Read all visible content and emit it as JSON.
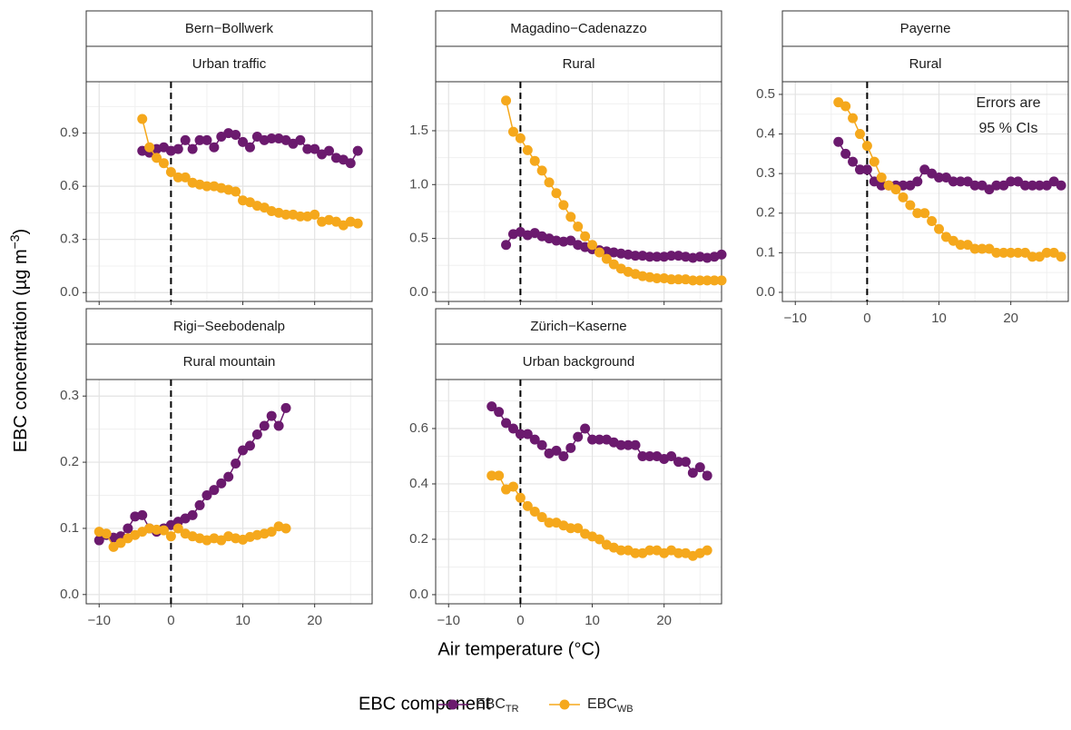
{
  "x_label": "Air temperature (°C)",
  "y_label": "EBC concentration (µg m",
  "y_label_sup": "−3",
  "y_label_end": ")",
  "legend": {
    "title": "EBC component",
    "position": "bottom",
    "series": [
      {
        "name": "EBC",
        "subscript": "TR",
        "color": "#6b1a6e"
      },
      {
        "name": "EBC",
        "subscript": "WB",
        "color": "#f5a81c"
      }
    ]
  },
  "chart_data": [
    {
      "type": "line",
      "site": "Bern−Bollwerk",
      "setting": "Urban traffic",
      "show_xtick_labels": false,
      "vline": 0,
      "x": [
        -4,
        -3,
        -2,
        -1,
        0,
        1,
        2,
        3,
        4,
        5,
        6,
        7,
        8,
        9,
        10,
        11,
        12,
        13,
        14,
        15,
        16,
        17,
        18,
        19,
        20,
        21,
        22,
        23,
        24,
        25,
        26
      ],
      "series": [
        {
          "values": [
            0.8,
            0.79,
            0.81,
            0.82,
            0.8,
            0.81,
            0.86,
            0.81,
            0.86,
            0.86,
            0.82,
            0.88,
            0.9,
            0.89,
            0.85,
            0.82,
            0.88,
            0.86,
            0.87,
            0.87,
            0.86,
            0.84,
            0.86,
            0.81,
            0.81,
            0.78,
            0.8,
            0.76,
            0.75,
            0.73,
            0.8
          ]
        },
        {
          "values": [
            0.98,
            0.82,
            0.76,
            0.73,
            0.68,
            0.65,
            0.65,
            0.62,
            0.61,
            0.6,
            0.6,
            0.59,
            0.58,
            0.57,
            0.52,
            0.51,
            0.49,
            0.48,
            0.46,
            0.45,
            0.44,
            0.44,
            0.43,
            0.43,
            0.44,
            0.4,
            0.41,
            0.4,
            0.38,
            0.4,
            0.39
          ]
        }
      ],
      "xlim": [
        -11.8,
        28
      ],
      "xticks": [
        {
          "value": -10,
          "label": "−10"
        },
        0,
        10,
        20
      ],
      "ylim": [
        -0.05,
        1.19
      ],
      "yticks": [
        {
          "value": 0,
          "label": "0.0"
        },
        0.3,
        0.6,
        0.9
      ],
      "grid": true
    },
    {
      "type": "line",
      "site": "Magadino−Cadenazzo",
      "setting": "Rural",
      "show_xtick_labels": false,
      "vline": 0,
      "x": [
        -2,
        -1,
        0,
        1,
        2,
        3,
        4,
        5,
        6,
        7,
        8,
        9,
        10,
        11,
        12,
        13,
        14,
        15,
        16,
        17,
        18,
        19,
        20,
        21,
        22,
        23,
        24,
        25,
        26,
        27,
        28
      ],
      "series": [
        {
          "values": [
            0.44,
            0.54,
            0.56,
            0.53,
            0.55,
            0.52,
            0.5,
            0.48,
            0.47,
            0.48,
            0.44,
            0.42,
            0.4,
            0.39,
            0.38,
            0.37,
            0.36,
            0.35,
            0.34,
            0.34,
            0.33,
            0.33,
            0.33,
            0.34,
            0.34,
            0.33,
            0.32,
            0.33,
            0.32,
            0.33,
            0.35
          ]
        },
        {
          "values": [
            1.78,
            1.49,
            1.43,
            1.32,
            1.22,
            1.13,
            1.02,
            0.92,
            0.81,
            0.7,
            0.61,
            0.52,
            0.44,
            0.37,
            0.31,
            0.26,
            0.22,
            0.19,
            0.17,
            0.15,
            0.14,
            0.13,
            0.13,
            0.12,
            0.12,
            0.12,
            0.11,
            0.11,
            0.11,
            0.11,
            0.11
          ]
        }
      ],
      "xlim": [
        -11.8,
        28
      ],
      "xticks": [
        {
          "value": -10,
          "label": "−10"
        },
        0,
        10,
        20
      ],
      "ylim": [
        -0.085,
        1.955
      ],
      "yticks": [
        {
          "value": 0,
          "label": "0.0"
        },
        0.5,
        {
          "value": 1,
          "label": "1.0"
        },
        1.5
      ],
      "grid": true
    },
    {
      "type": "line",
      "site": "Payerne",
      "setting": "Rural",
      "show_xtick_labels": true,
      "vline": 0,
      "annotation": [
        "Errors are",
        "95 % CIs"
      ],
      "x": [
        -4,
        -3,
        -2,
        -1,
        0,
        1,
        2,
        3,
        4,
        5,
        6,
        7,
        8,
        9,
        10,
        11,
        12,
        13,
        14,
        15,
        16,
        17,
        18,
        19,
        20,
        21,
        22,
        23,
        24,
        25,
        26,
        27
      ],
      "series": [
        {
          "values": [
            0.38,
            0.35,
            0.33,
            0.31,
            0.31,
            0.28,
            0.27,
            0.27,
            0.27,
            0.27,
            0.27,
            0.28,
            0.31,
            0.3,
            0.29,
            0.29,
            0.28,
            0.28,
            0.28,
            0.27,
            0.27,
            0.26,
            0.27,
            0.27,
            0.28,
            0.28,
            0.27,
            0.27,
            0.27,
            0.27,
            0.28,
            0.27
          ]
        },
        {
          "values": [
            0.48,
            0.47,
            0.44,
            0.4,
            0.37,
            0.33,
            0.29,
            0.27,
            0.26,
            0.24,
            0.22,
            0.2,
            0.2,
            0.18,
            0.16,
            0.14,
            0.13,
            0.12,
            0.12,
            0.11,
            0.11,
            0.11,
            0.1,
            0.1,
            0.1,
            0.1,
            0.1,
            0.09,
            0.09,
            0.1,
            0.1,
            0.09
          ]
        }
      ],
      "xlim": [
        -11.8,
        28
      ],
      "xticks": [
        {
          "value": -10,
          "label": "−10"
        },
        0,
        10,
        20
      ],
      "ylim": [
        -0.023,
        0.532
      ],
      "yticks": [
        {
          "value": 0,
          "label": "0.0"
        },
        0.1,
        0.2,
        0.3,
        0.4,
        0.5
      ],
      "grid": true
    },
    {
      "type": "line",
      "site": "Rigi−Seebodenalp",
      "setting": "Rural mountain",
      "show_xtick_labels": true,
      "vline": 0,
      "x": [
        -10,
        -9,
        -8,
        -7,
        -6,
        -5,
        -4,
        -3,
        -2,
        -1,
        0,
        1,
        2,
        3,
        4,
        5,
        6,
        7,
        8,
        9,
        10,
        11,
        12,
        13,
        14,
        15,
        16
      ],
      "series": [
        {
          "values": [
            0.082,
            0.09,
            0.086,
            0.088,
            0.1,
            0.118,
            0.12,
            0.1,
            0.095,
            0.1,
            0.105,
            0.11,
            0.115,
            0.12,
            0.135,
            0.15,
            0.158,
            0.168,
            0.178,
            0.198,
            0.218,
            0.225,
            0.242,
            0.255,
            0.27,
            0.255,
            0.282
          ]
        },
        {
          "values": [
            0.095,
            0.092,
            0.072,
            0.078,
            0.085,
            0.09,
            0.095,
            0.1,
            0.098,
            0.097,
            0.088,
            0.1,
            0.092,
            0.088,
            0.085,
            0.082,
            0.085,
            0.082,
            0.088,
            0.085,
            0.083,
            0.087,
            0.09,
            0.092,
            0.095,
            0.103,
            0.1
          ]
        }
      ],
      "xlim": [
        -11.8,
        28
      ],
      "xticks": [
        {
          "value": -10,
          "label": "−10"
        },
        0,
        10,
        20
      ],
      "ylim": [
        -0.014,
        0.325
      ],
      "yticks": [
        {
          "value": 0,
          "label": "0.0"
        },
        0.1,
        0.2,
        0.3
      ],
      "grid": true
    },
    {
      "type": "line",
      "site": "Zürich−Kaserne",
      "setting": "Urban background",
      "show_xtick_labels": true,
      "vline": 0,
      "x": [
        -4,
        -3,
        -2,
        -1,
        0,
        1,
        2,
        3,
        4,
        5,
        6,
        7,
        8,
        9,
        10,
        11,
        12,
        13,
        14,
        15,
        16,
        17,
        18,
        19,
        20,
        21,
        22,
        23,
        24,
        25,
        26
      ],
      "series": [
        {
          "values": [
            0.68,
            0.66,
            0.62,
            0.6,
            0.58,
            0.58,
            0.56,
            0.54,
            0.51,
            0.52,
            0.5,
            0.53,
            0.57,
            0.6,
            0.56,
            0.56,
            0.56,
            0.55,
            0.54,
            0.54,
            0.54,
            0.5,
            0.5,
            0.5,
            0.49,
            0.5,
            0.48,
            0.48,
            0.44,
            0.46,
            0.43
          ]
        },
        {
          "values": [
            0.43,
            0.43,
            0.38,
            0.39,
            0.35,
            0.32,
            0.3,
            0.28,
            0.26,
            0.26,
            0.25,
            0.24,
            0.24,
            0.22,
            0.21,
            0.2,
            0.18,
            0.17,
            0.16,
            0.16,
            0.15,
            0.15,
            0.16,
            0.16,
            0.15,
            0.16,
            0.15,
            0.15,
            0.14,
            0.15,
            0.16
          ]
        }
      ],
      "xlim": [
        -11.8,
        28
      ],
      "xticks": [
        {
          "value": -10,
          "label": "−10"
        },
        0,
        10,
        20
      ],
      "ylim": [
        -0.033,
        0.777
      ],
      "yticks": [
        {
          "value": 0,
          "label": "0.0"
        },
        0.2,
        0.4,
        0.6
      ],
      "grid": true
    }
  ]
}
